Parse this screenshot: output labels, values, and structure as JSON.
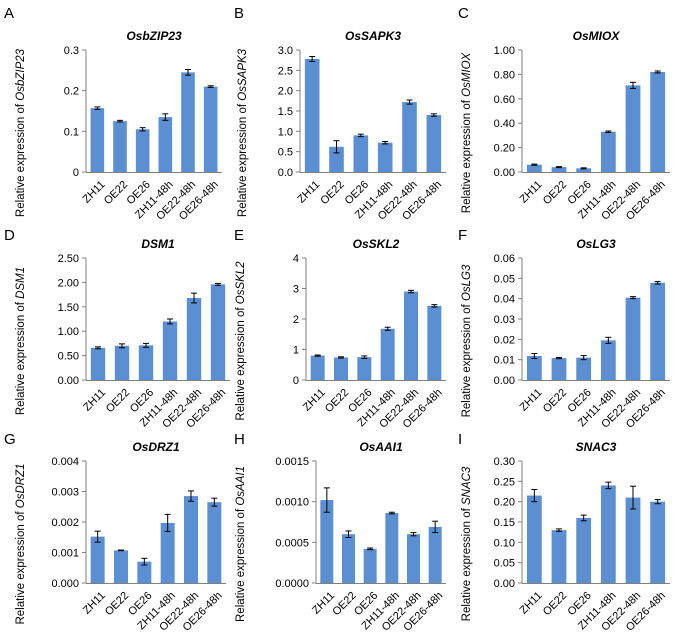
{
  "chart_data": [
    {
      "type": "bar",
      "panel_label": "A",
      "title": "OsbZIP23",
      "ylabel_prefix": "Relative expression of ",
      "ylabel_gene": "OsbZIP23",
      "categories": [
        "ZH11",
        "OE22",
        "OE26",
        "ZH11-48h",
        "OE22-48h",
        "OE26-48h"
      ],
      "values": [
        0.157,
        0.125,
        0.105,
        0.135,
        0.245,
        0.21
      ],
      "errors": [
        0.003,
        0.002,
        0.004,
        0.008,
        0.007,
        0.002
      ],
      "ylim": [
        0,
        0.3
      ],
      "yticks": [
        0,
        0.1,
        0.2,
        0.3
      ],
      "ytick_labels": [
        "0",
        "0.1",
        "0.2",
        "0.3"
      ]
    },
    {
      "type": "bar",
      "panel_label": "B",
      "title": "OsSAPK3",
      "ylabel_prefix": "Relative expression of ",
      "ylabel_gene": "OsSAPK3",
      "categories": [
        "ZH11",
        "OE22",
        "OE26",
        "ZH11-48h",
        "OE22-48h",
        "OE26-48h"
      ],
      "values": [
        2.78,
        0.62,
        0.9,
        0.72,
        1.72,
        1.4
      ],
      "errors": [
        0.06,
        0.15,
        0.03,
        0.03,
        0.05,
        0.03
      ],
      "ylim": [
        0,
        3.0
      ],
      "yticks": [
        0,
        0.5,
        1.0,
        1.5,
        2.0,
        2.5,
        3.0
      ],
      "ytick_labels": [
        "0.0",
        "0.5",
        "1.0",
        "1.5",
        "2.0",
        "2.5",
        "3.0"
      ]
    },
    {
      "type": "bar",
      "panel_label": "C",
      "title": "OsMIOX",
      "ylabel_prefix": "Relative expression of ",
      "ylabel_gene": "OsMIOX",
      "categories": [
        "ZH11",
        "OE22",
        "OE26",
        "ZH11-48h",
        "OE22-48h",
        "OE26-48h"
      ],
      "values": [
        0.06,
        0.04,
        0.03,
        0.33,
        0.71,
        0.82
      ],
      "errors": [
        0.005,
        0.004,
        0.004,
        0.006,
        0.025,
        0.008
      ],
      "ylim": [
        0,
        1.0
      ],
      "yticks": [
        0,
        0.2,
        0.4,
        0.6,
        0.8,
        1.0
      ],
      "ytick_labels": [
        "0.00",
        "0.20",
        "0.40",
        "0.60",
        "0.80",
        "1.00"
      ]
    },
    {
      "type": "bar",
      "panel_label": "D",
      "title": "DSM1",
      "ylabel_prefix": "Relative expression of ",
      "ylabel_gene": "DSM1",
      "categories": [
        "ZH11",
        "OE22",
        "OE26",
        "ZH11-48h",
        "OE22-48h",
        "OE26-48h"
      ],
      "values": [
        0.66,
        0.7,
        0.71,
        1.2,
        1.68,
        1.96
      ],
      "errors": [
        0.02,
        0.04,
        0.04,
        0.05,
        0.1,
        0.02
      ],
      "ylim": [
        0,
        2.5
      ],
      "yticks": [
        0,
        0.5,
        1.0,
        1.5,
        2.0,
        2.5
      ],
      "ytick_labels": [
        "0.00",
        "0.50",
        "1.00",
        "1.50",
        "2.00",
        "2.50"
      ]
    },
    {
      "type": "bar",
      "panel_label": "E",
      "title": "OsSKL2",
      "ylabel_prefix": "Relative expression of ",
      "ylabel_gene": "OsSKL2",
      "categories": [
        "ZH11",
        "OE22",
        "OE26",
        "ZH11-48h",
        "OE22-48h",
        "OE26-48h"
      ],
      "values": [
        0.8,
        0.74,
        0.75,
        1.68,
        2.9,
        2.43
      ],
      "errors": [
        0.02,
        0.02,
        0.04,
        0.05,
        0.04,
        0.04
      ],
      "ylim": [
        0,
        4
      ],
      "yticks": [
        0,
        1,
        2,
        3,
        4
      ],
      "ytick_labels": [
        "0",
        "1",
        "2",
        "3",
        "4"
      ]
    },
    {
      "type": "bar",
      "panel_label": "F",
      "title": "OsLG3",
      "ylabel_prefix": "Relative expression of ",
      "ylabel_gene": "OsLG3",
      "categories": [
        "ZH11",
        "OE22",
        "OE26",
        "ZH11-48h",
        "OE22-48h",
        "OE26-48h"
      ],
      "values": [
        0.0118,
        0.0108,
        0.011,
        0.0195,
        0.0405,
        0.0478
      ],
      "errors": [
        0.0012,
        0.0003,
        0.001,
        0.0015,
        0.0005,
        0.0006
      ],
      "ylim": [
        0,
        0.06
      ],
      "yticks": [
        0,
        0.01,
        0.02,
        0.03,
        0.04,
        0.05,
        0.06
      ],
      "ytick_labels": [
        "0.00",
        "0.01",
        "0.02",
        "0.03",
        "0.04",
        "0.05",
        "0.06"
      ]
    },
    {
      "type": "bar",
      "panel_label": "G",
      "title": "OsDRZ1",
      "ylabel_prefix": "Relative expression of ",
      "ylabel_gene": "OsDRZ1",
      "categories": [
        "ZH11",
        "OE22",
        "OE26",
        "ZH11-48h",
        "OE22-48h",
        "OE26-48h"
      ],
      "values": [
        0.00152,
        0.00107,
        0.0007,
        0.00197,
        0.00285,
        0.00265
      ],
      "errors": [
        0.00018,
        1e-05,
        0.00011,
        0.00028,
        0.00017,
        0.00013
      ],
      "ylim": [
        0,
        0.004
      ],
      "yticks": [
        0,
        0.001,
        0.002,
        0.003,
        0.004
      ],
      "ytick_labels": [
        "0.000",
        "0.001",
        "0.002",
        "0.003",
        "0.004"
      ]
    },
    {
      "type": "bar",
      "panel_label": "H",
      "title": "OsAAI1",
      "ylabel_prefix": "Relative expression of ",
      "ylabel_gene": "OsAAI1",
      "categories": [
        "ZH11",
        "OE22",
        "OE26",
        "ZH11-48h",
        "OE22-48h",
        "OE26-48h"
      ],
      "values": [
        0.00102,
        0.0006,
        0.00042,
        0.00086,
        0.0006,
        0.00069
      ],
      "errors": [
        0.00015,
        4e-05,
        1e-05,
        1e-05,
        2e-05,
        7e-05
      ],
      "ylim": [
        0,
        0.0015
      ],
      "yticks": [
        0,
        0.0005,
        0.001,
        0.0015
      ],
      "ytick_labels": [
        "0.0000",
        "0.0005",
        "0.0010",
        "0.0015"
      ]
    },
    {
      "type": "bar",
      "panel_label": "I",
      "title": "SNAC3",
      "ylabel_prefix": "Relative expression of ",
      "ylabel_gene": "SNAC3",
      "categories": [
        "ZH11",
        "OE22",
        "OE26",
        "ZH11-48h",
        "OE22-48h",
        "OE26-48h"
      ],
      "values": [
        0.215,
        0.13,
        0.16,
        0.24,
        0.21,
        0.2
      ],
      "errors": [
        0.015,
        0.003,
        0.007,
        0.008,
        0.028,
        0.005
      ],
      "ylim": [
        0,
        0.3
      ],
      "yticks": [
        0,
        0.05,
        0.1,
        0.15,
        0.2,
        0.25,
        0.3
      ],
      "ytick_labels": [
        "0.00",
        "0.05",
        "0.10",
        "0.15",
        "0.20",
        "0.25",
        "0.30"
      ]
    }
  ],
  "colors": {
    "bar": "#5b8fd1",
    "axis": "#808080",
    "error_bar": "#000000"
  }
}
